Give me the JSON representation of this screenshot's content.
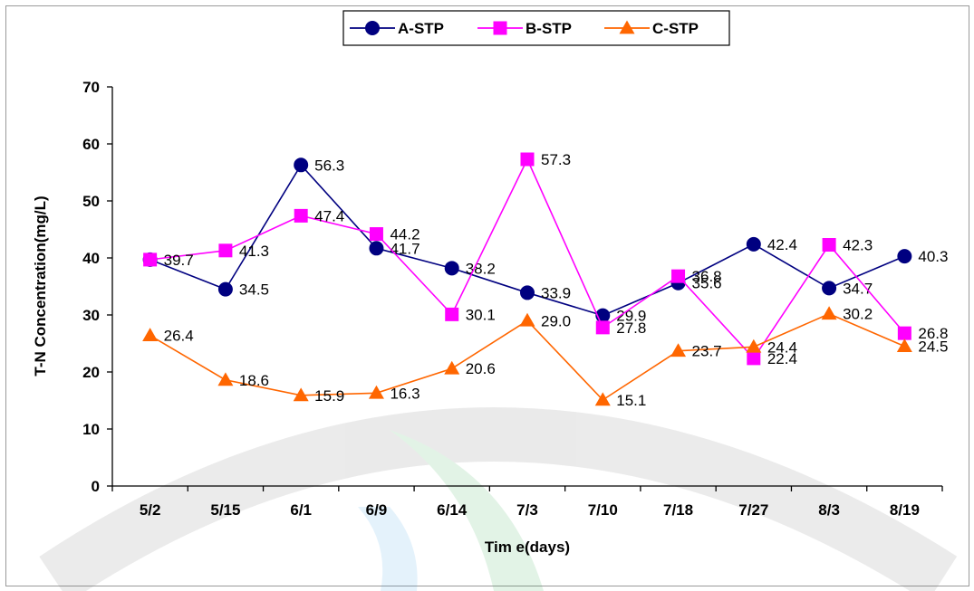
{
  "chart_data": {
    "type": "line",
    "title": "",
    "xlabel": "Tim e(days)",
    "ylabel": "T-N Concentration(mg/L)",
    "categories": [
      "5/2",
      "5/15",
      "6/1",
      "6/9",
      "6/14",
      "7/3",
      "7/10",
      "7/18",
      "7/27",
      "8/3",
      "8/19"
    ],
    "ylim": [
      0,
      70
    ],
    "yticks": [
      "0",
      "10",
      "20",
      "30",
      "40",
      "50",
      "60",
      "70"
    ],
    "grid": false,
    "legend_position": "top-center",
    "series": [
      {
        "name": "A-STP",
        "color": "#000080",
        "marker": "circle",
        "values": [
          39.7,
          34.5,
          56.3,
          41.7,
          38.2,
          33.9,
          29.9,
          35.6,
          42.4,
          34.7,
          40.3
        ],
        "labels": [
          "",
          "34.5",
          "56.3",
          "41.7",
          "38.2",
          "33.9",
          "29.9",
          "35.6",
          "42.4",
          "34.7",
          "40.3"
        ]
      },
      {
        "name": "B-STP",
        "color": "#ff00ff",
        "marker": "square",
        "values": [
          39.7,
          41.3,
          47.4,
          44.2,
          30.1,
          57.3,
          27.8,
          36.8,
          22.4,
          42.3,
          26.8
        ],
        "labels": [
          "39.7",
          "41.3",
          "47.4",
          "44.2",
          "30.1",
          "57.3",
          "27.8",
          "36.8",
          "22.4",
          "42.3",
          "26.8"
        ]
      },
      {
        "name": "C-STP",
        "color": "#ff6600",
        "marker": "triangle",
        "values": [
          26.4,
          18.6,
          15.9,
          16.3,
          20.6,
          29.0,
          15.1,
          23.7,
          24.4,
          30.2,
          24.5
        ],
        "labels": [
          "26.4",
          "18.6",
          "15.9",
          "16.3",
          "20.6",
          "29.0",
          "15.1",
          "23.7",
          "24.4",
          "30.2",
          "24.5"
        ]
      }
    ]
  }
}
